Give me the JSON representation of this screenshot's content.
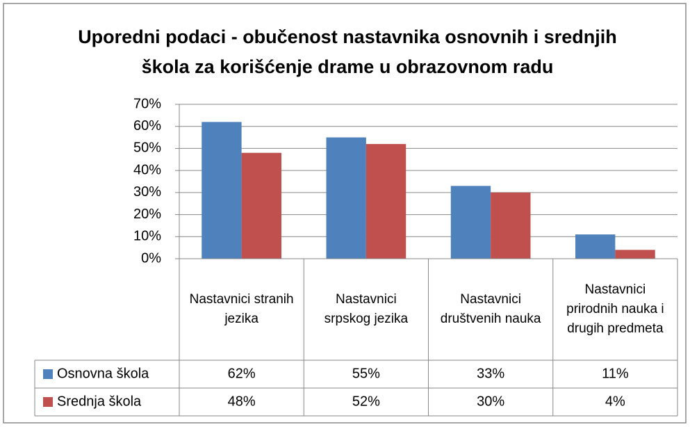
{
  "chart_data": {
    "type": "bar",
    "title": "Uporedni podaci - obučenost nastavnika osnovnih i srednjih škola za korišćenje drame u obrazovnom radu",
    "categories": [
      "Nastavnici stranih jezika",
      "Nastavnici srpskog jezika",
      "Nastavnici društvenih nauka",
      "Nastavnici prirodnih nauka i drugih predmeta"
    ],
    "series": [
      {
        "name": "Osnovna škola",
        "color": "#4f81bd",
        "values": [
          62,
          55,
          33,
          11
        ],
        "value_labels": [
          "62%",
          "55%",
          "33%",
          "11%"
        ]
      },
      {
        "name": "Srednja škola",
        "color": "#c0504d",
        "values": [
          48,
          52,
          30,
          4
        ],
        "value_labels": [
          "48%",
          "52%",
          "30%",
          "4%"
        ]
      }
    ],
    "ylim": [
      0,
      70
    ],
    "yticks": [
      {
        "value": 0,
        "label": "0%"
      },
      {
        "value": 10,
        "label": "10%"
      },
      {
        "value": 20,
        "label": "20%"
      },
      {
        "value": 30,
        "label": "30%"
      },
      {
        "value": 40,
        "label": "40%"
      },
      {
        "value": 50,
        "label": "50%"
      },
      {
        "value": 60,
        "label": "60%"
      },
      {
        "value": 70,
        "label": "70%"
      }
    ],
    "grid": true
  }
}
